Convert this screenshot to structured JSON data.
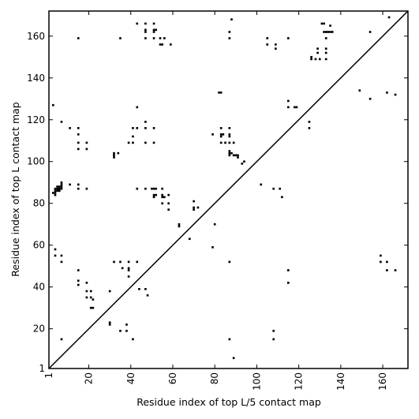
{
  "chart_data": {
    "type": "scatter",
    "xlabel": "Residue index of top L/5 contact map",
    "ylabel": "Residue index of top L contact map",
    "xlim": [
      1,
      172
    ],
    "ylim": [
      1,
      172
    ],
    "xticks": [
      1,
      20,
      40,
      60,
      80,
      100,
      120,
      140,
      160
    ],
    "yticks": [
      1,
      20,
      40,
      60,
      80,
      100,
      120,
      140,
      160
    ],
    "diagonal": true,
    "marker_color": "#000000",
    "points": [
      [
        3,
        85
      ],
      [
        3,
        127
      ],
      [
        4,
        84
      ],
      [
        4,
        85
      ],
      [
        4,
        86
      ],
      [
        4,
        87
      ],
      [
        5,
        86
      ],
      [
        5,
        87
      ],
      [
        5,
        88
      ],
      [
        6,
        86
      ],
      [
        6,
        87
      ],
      [
        6,
        88
      ],
      [
        7,
        87
      ],
      [
        7,
        88
      ],
      [
        7,
        89
      ],
      [
        7,
        90
      ],
      [
        7,
        119
      ],
      [
        7,
        15
      ],
      [
        7,
        55
      ],
      [
        7,
        52
      ],
      [
        4,
        58
      ],
      [
        4,
        55
      ],
      [
        11,
        89
      ],
      [
        11,
        116
      ],
      [
        15,
        159
      ],
      [
        15,
        116
      ],
      [
        15,
        113
      ],
      [
        15,
        109
      ],
      [
        15,
        106
      ],
      [
        15,
        89
      ],
      [
        15,
        87
      ],
      [
        15,
        48
      ],
      [
        15,
        43
      ],
      [
        15,
        41
      ],
      [
        19,
        109
      ],
      [
        19,
        106
      ],
      [
        19,
        87
      ],
      [
        19,
        42
      ],
      [
        19,
        38
      ],
      [
        19,
        35
      ],
      [
        21,
        38
      ],
      [
        21,
        35
      ],
      [
        21,
        30
      ],
      [
        22,
        34
      ],
      [
        22,
        30
      ],
      [
        30,
        38
      ],
      [
        30,
        22
      ],
      [
        30,
        23
      ],
      [
        32,
        104
      ],
      [
        32,
        103
      ],
      [
        32,
        102
      ],
      [
        32,
        52
      ],
      [
        34,
        104
      ],
      [
        35,
        52
      ],
      [
        35,
        19
      ],
      [
        35,
        159
      ],
      [
        36,
        49
      ],
      [
        38,
        22
      ],
      [
        38,
        19
      ],
      [
        39,
        109
      ],
      [
        39,
        52
      ],
      [
        39,
        49
      ],
      [
        39,
        48
      ],
      [
        39,
        45
      ],
      [
        41,
        116
      ],
      [
        41,
        112
      ],
      [
        41,
        109
      ],
      [
        41,
        15
      ],
      [
        43,
        166
      ],
      [
        43,
        126
      ],
      [
        43,
        116
      ],
      [
        43,
        87
      ],
      [
        43,
        52
      ],
      [
        44,
        39
      ],
      [
        47,
        166
      ],
      [
        47,
        163
      ],
      [
        47,
        162
      ],
      [
        47,
        159
      ],
      [
        47,
        119
      ],
      [
        47,
        116
      ],
      [
        47,
        109
      ],
      [
        47,
        87
      ],
      [
        47,
        39
      ],
      [
        48,
        36
      ],
      [
        50,
        87
      ],
      [
        51,
        166
      ],
      [
        51,
        163
      ],
      [
        51,
        162
      ],
      [
        51,
        159
      ],
      [
        51,
        116
      ],
      [
        51,
        109
      ],
      [
        51,
        87
      ],
      [
        51,
        84
      ],
      [
        51,
        83
      ],
      [
        52,
        87
      ],
      [
        52,
        84
      ],
      [
        52,
        163
      ],
      [
        54,
        159
      ],
      [
        54,
        156
      ],
      [
        55,
        156
      ],
      [
        55,
        87
      ],
      [
        55,
        84
      ],
      [
        55,
        83
      ],
      [
        55,
        80
      ],
      [
        56,
        159
      ],
      [
        56,
        83
      ],
      [
        58,
        84
      ],
      [
        58,
        80
      ],
      [
        58,
        77
      ],
      [
        59,
        156
      ],
      [
        63,
        70
      ],
      [
        63,
        69
      ],
      [
        68,
        63
      ],
      [
        70,
        81
      ],
      [
        70,
        78
      ],
      [
        70,
        77
      ],
      [
        72,
        78
      ],
      [
        79,
        113
      ],
      [
        79,
        59
      ],
      [
        80,
        70
      ],
      [
        82,
        133
      ],
      [
        83,
        133
      ],
      [
        83,
        116
      ],
      [
        83,
        113
      ],
      [
        83,
        112
      ],
      [
        83,
        109
      ],
      [
        84,
        113
      ],
      [
        85,
        109
      ],
      [
        87,
        162
      ],
      [
        87,
        159
      ],
      [
        87,
        116
      ],
      [
        87,
        113
      ],
      [
        87,
        112
      ],
      [
        87,
        109
      ],
      [
        87,
        105
      ],
      [
        87,
        104
      ],
      [
        87,
        103
      ],
      [
        87,
        52
      ],
      [
        87,
        15
      ],
      [
        88,
        168
      ],
      [
        88,
        104
      ],
      [
        89,
        103
      ],
      [
        89,
        109
      ],
      [
        89,
        6
      ],
      [
        90,
        103
      ],
      [
        91,
        103
      ],
      [
        91,
        102
      ],
      [
        93,
        99
      ],
      [
        94,
        100
      ],
      [
        102,
        89
      ],
      [
        105,
        159
      ],
      [
        105,
        156
      ],
      [
        108,
        87
      ],
      [
        108,
        19
      ],
      [
        108,
        15
      ],
      [
        109,
        156
      ],
      [
        109,
        154
      ],
      [
        111,
        87
      ],
      [
        112,
        83
      ],
      [
        115,
        159
      ],
      [
        115,
        129
      ],
      [
        115,
        126
      ],
      [
        115,
        48
      ],
      [
        115,
        42
      ],
      [
        118,
        126
      ],
      [
        119,
        126
      ],
      [
        125,
        119
      ],
      [
        125,
        116
      ],
      [
        126,
        150
      ],
      [
        126,
        149
      ],
      [
        128,
        149
      ],
      [
        129,
        154
      ],
      [
        129,
        152
      ],
      [
        130,
        149
      ],
      [
        131,
        166
      ],
      [
        132,
        166
      ],
      [
        132,
        162
      ],
      [
        133,
        162
      ],
      [
        133,
        159
      ],
      [
        133,
        154
      ],
      [
        133,
        152
      ],
      [
        133,
        149
      ],
      [
        134,
        162
      ],
      [
        135,
        165
      ],
      [
        135,
        162
      ],
      [
        136,
        162
      ],
      [
        149,
        134
      ],
      [
        154,
        162
      ],
      [
        154,
        130
      ],
      [
        159,
        55
      ],
      [
        159,
        52
      ],
      [
        162,
        133
      ],
      [
        162,
        52
      ],
      [
        162,
        48
      ],
      [
        163,
        169
      ],
      [
        166,
        132
      ],
      [
        166,
        48
      ]
    ]
  }
}
